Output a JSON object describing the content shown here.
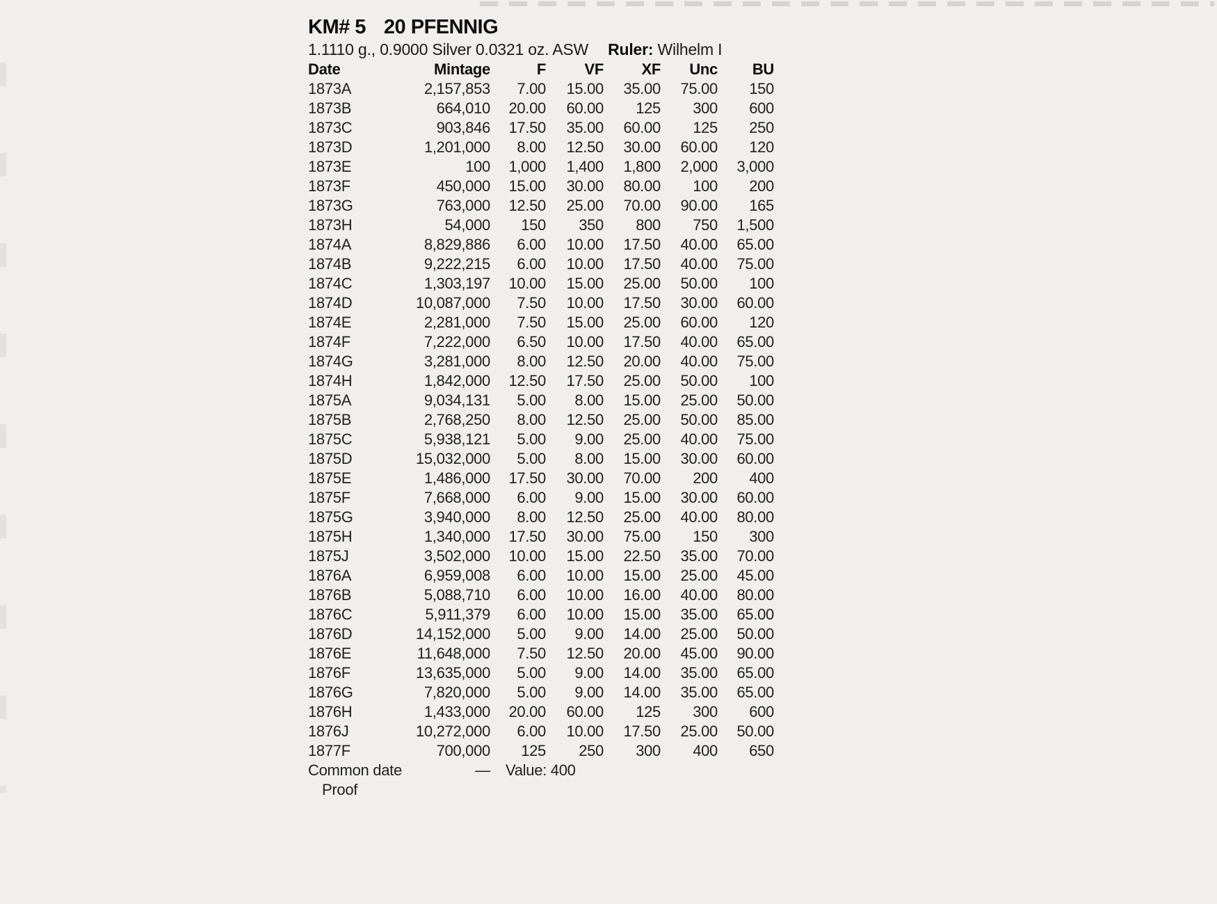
{
  "page": {
    "title_km": "KM# 5",
    "title_denom": "20 PFENNIG",
    "spec_line": "1.1110 g., 0.9000 Silver 0.0321 oz. ASW",
    "ruler_label": "Ruler:",
    "ruler_value": "Wilhelm I"
  },
  "table": {
    "columns": [
      "Date",
      "Mintage",
      "F",
      "VF",
      "XF",
      "Unc",
      "BU"
    ],
    "rows": [
      [
        "1873A",
        "2,157,853",
        "7.00",
        "15.00",
        "35.00",
        "75.00",
        "150"
      ],
      [
        "1873B",
        "664,010",
        "20.00",
        "60.00",
        "125",
        "300",
        "600"
      ],
      [
        "1873C",
        "903,846",
        "17.50",
        "35.00",
        "60.00",
        "125",
        "250"
      ],
      [
        "1873D",
        "1,201,000",
        "8.00",
        "12.50",
        "30.00",
        "60.00",
        "120"
      ],
      [
        "1873E",
        "100",
        "1,000",
        "1,400",
        "1,800",
        "2,000",
        "3,000"
      ],
      [
        "1873F",
        "450,000",
        "15.00",
        "30.00",
        "80.00",
        "100",
        "200"
      ],
      [
        "1873G",
        "763,000",
        "12.50",
        "25.00",
        "70.00",
        "90.00",
        "165"
      ],
      [
        "1873H",
        "54,000",
        "150",
        "350",
        "800",
        "750",
        "1,500"
      ],
      [
        "1874A",
        "8,829,886",
        "6.00",
        "10.00",
        "17.50",
        "40.00",
        "65.00"
      ],
      [
        "1874B",
        "9,222,215",
        "6.00",
        "10.00",
        "17.50",
        "40.00",
        "75.00"
      ],
      [
        "1874C",
        "1,303,197",
        "10.00",
        "15.00",
        "25.00",
        "50.00",
        "100"
      ],
      [
        "1874D",
        "10,087,000",
        "7.50",
        "10.00",
        "17.50",
        "30.00",
        "60.00"
      ],
      [
        "1874E",
        "2,281,000",
        "7.50",
        "15.00",
        "25.00",
        "60.00",
        "120"
      ],
      [
        "1874F",
        "7,222,000",
        "6.50",
        "10.00",
        "17.50",
        "40.00",
        "65.00"
      ],
      [
        "1874G",
        "3,281,000",
        "8.00",
        "12.50",
        "20.00",
        "40.00",
        "75.00"
      ],
      [
        "1874H",
        "1,842,000",
        "12.50",
        "17.50",
        "25.00",
        "50.00",
        "100"
      ],
      [
        "1875A",
        "9,034,131",
        "5.00",
        "8.00",
        "15.00",
        "25.00",
        "50.00"
      ],
      [
        "1875B",
        "2,768,250",
        "8.00",
        "12.50",
        "25.00",
        "50.00",
        "85.00"
      ],
      [
        "1875C",
        "5,938,121",
        "5.00",
        "9.00",
        "25.00",
        "40.00",
        "75.00"
      ],
      [
        "1875D",
        "15,032,000",
        "5.00",
        "8.00",
        "15.00",
        "30.00",
        "60.00"
      ],
      [
        "1875E",
        "1,486,000",
        "17.50",
        "30.00",
        "70.00",
        "200",
        "400"
      ],
      [
        "1875F",
        "7,668,000",
        "6.00",
        "9.00",
        "15.00",
        "30.00",
        "60.00"
      ],
      [
        "1875G",
        "3,940,000",
        "8.00",
        "12.50",
        "25.00",
        "40.00",
        "80.00"
      ],
      [
        "1875H",
        "1,340,000",
        "17.50",
        "30.00",
        "75.00",
        "150",
        "300"
      ],
      [
        "1875J",
        "3,502,000",
        "10.00",
        "15.00",
        "22.50",
        "35.00",
        "70.00"
      ],
      [
        "1876A",
        "6,959,008",
        "6.00",
        "10.00",
        "15.00",
        "25.00",
        "45.00"
      ],
      [
        "1876B",
        "5,088,710",
        "6.00",
        "10.00",
        "16.00",
        "40.00",
        "80.00"
      ],
      [
        "1876C",
        "5,911,379",
        "6.00",
        "10.00",
        "15.00",
        "35.00",
        "65.00"
      ],
      [
        "1876D",
        "14,152,000",
        "5.00",
        "9.00",
        "14.00",
        "25.00",
        "50.00"
      ],
      [
        "1876E",
        "11,648,000",
        "7.50",
        "12.50",
        "20.00",
        "45.00",
        "90.00"
      ],
      [
        "1876F",
        "13,635,000",
        "5.00",
        "9.00",
        "14.00",
        "35.00",
        "65.00"
      ],
      [
        "1876G",
        "7,820,000",
        "5.00",
        "9.00",
        "14.00",
        "35.00",
        "65.00"
      ],
      [
        "1876H",
        "1,433,000",
        "20.00",
        "60.00",
        "125",
        "300",
        "600"
      ],
      [
        "1876J",
        "10,272,000",
        "6.00",
        "10.00",
        "17.50",
        "25.00",
        "50.00"
      ],
      [
        "1877F",
        "700,000",
        "125",
        "250",
        "300",
        "400",
        "650"
      ]
    ],
    "footer": {
      "label_line1": "Common date",
      "label_line2": "Proof",
      "mintage_dash": "—",
      "value_text": "Value: 400"
    }
  },
  "colors": {
    "paper": "#f1efec",
    "text": "#1f1f1f"
  }
}
